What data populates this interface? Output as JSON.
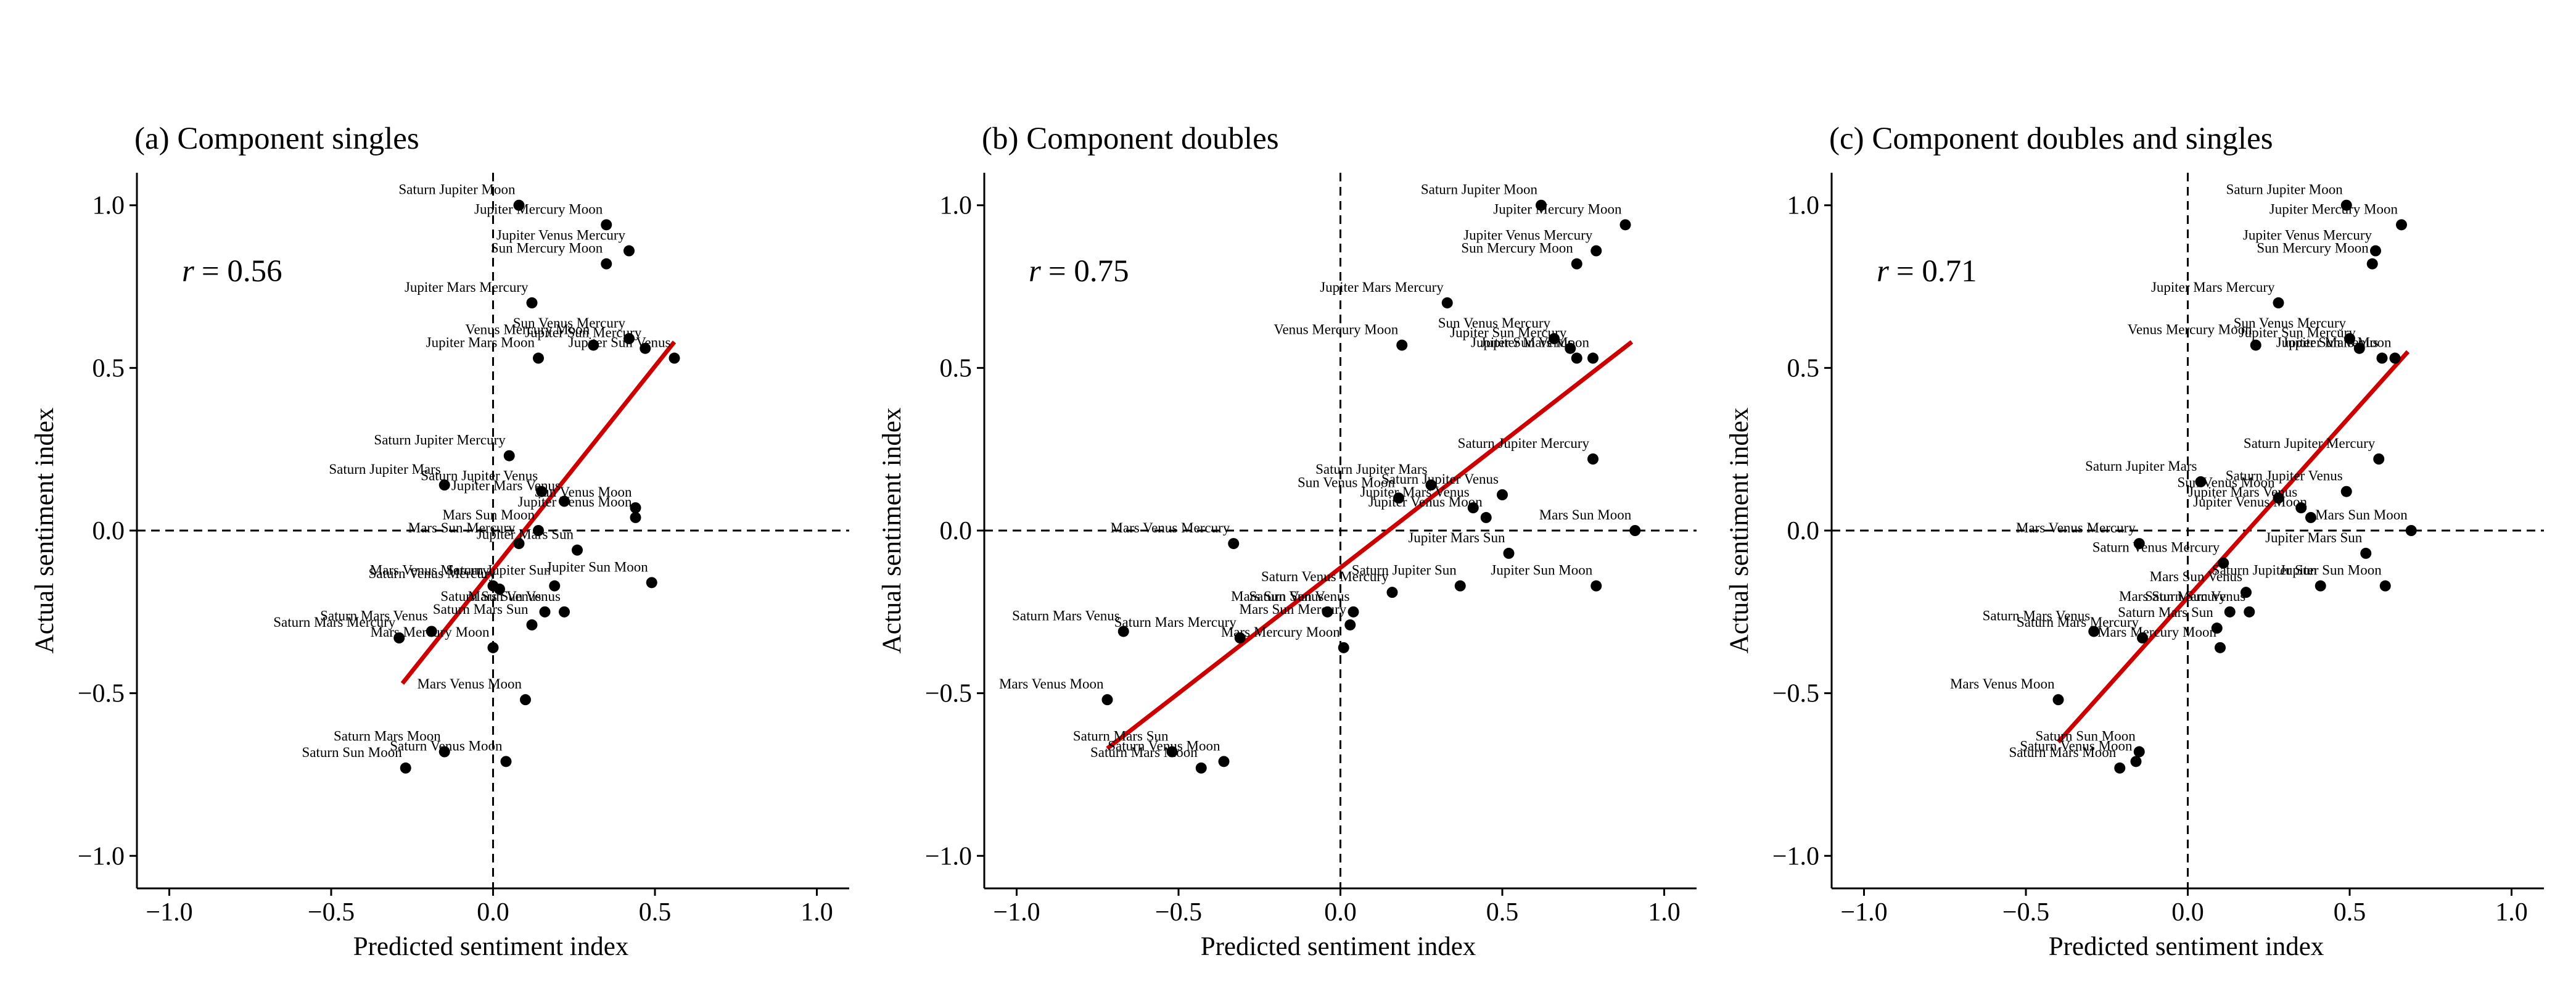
{
  "colors": {
    "points": "#000000",
    "fit_line": "#cc0000"
  },
  "chart_data": [
    {
      "type": "scatter",
      "title": "(a) Component singles",
      "xlabel": "Predicted sentiment index",
      "ylabel": "Actual sentiment index",
      "xlim": [
        -1.1,
        1.1
      ],
      "ylim": [
        -1.1,
        1.1
      ],
      "xticks": [
        "−1.0",
        "−0.5",
        "0.0",
        "0.5",
        "1.0"
      ],
      "yticks": [
        "−1.0",
        "−0.5",
        "0.0",
        "0.5",
        "1.0"
      ],
      "reference_lines": "dashed at x = 0 and y = 0",
      "r_var": "r",
      "r_value": "= 0.56",
      "fit_line": {
        "x": [
          -0.28,
          0.56
        ],
        "y": [
          -0.47,
          0.58
        ]
      },
      "points": [
        {
          "label": "Saturn Jupiter Moon",
          "x": 0.08,
          "y": 1.0
        },
        {
          "label": "Jupiter Mercury Moon",
          "x": 0.35,
          "y": 0.94
        },
        {
          "label": "Jupiter Venus Mercury",
          "x": 0.42,
          "y": 0.86
        },
        {
          "label": "Sun Mercury Moon",
          "x": 0.35,
          "y": 0.82
        },
        {
          "label": "Jupiter Mars Mercury",
          "x": 0.12,
          "y": 0.7
        },
        {
          "label": "Sun Venus Mercury",
          "x": 0.42,
          "y": 0.59
        },
        {
          "label": "Venus Mercury Moon",
          "x": 0.31,
          "y": 0.57
        },
        {
          "label": "Jupiter Sun Mercury",
          "x": 0.47,
          "y": 0.56
        },
        {
          "label": "Jupiter Mars Moon",
          "x": 0.14,
          "y": 0.53
        },
        {
          "label": "Jupiter Sun Venus",
          "x": 0.56,
          "y": 0.53
        },
        {
          "label": "Saturn Jupiter Mercury",
          "x": 0.05,
          "y": 0.23
        },
        {
          "label": "Saturn Jupiter Mars",
          "x": -0.15,
          "y": 0.14
        },
        {
          "label": "Saturn Jupiter Venus",
          "x": 0.15,
          "y": 0.12
        },
        {
          "label": "Sun Venus Moon",
          "x": 0.44,
          "y": 0.07
        },
        {
          "label": "Jupiter Mars Venus",
          "x": 0.22,
          "y": 0.09
        },
        {
          "label": "Jupiter Venus Moon",
          "x": 0.44,
          "y": 0.04
        },
        {
          "label": "Mars Sun Moon",
          "x": 0.14,
          "y": 0.0
        },
        {
          "label": "Mars Sun Mercury",
          "x": 0.08,
          "y": -0.04
        },
        {
          "label": "Jupiter Mars Sun",
          "x": 0.26,
          "y": -0.06
        },
        {
          "label": "Mars Venus Mercury",
          "x": 0.0,
          "y": -0.17
        },
        {
          "label": "Saturn Jupiter Sun",
          "x": 0.19,
          "y": -0.17
        },
        {
          "label": "Saturn Venus Mercury",
          "x": 0.02,
          "y": -0.18
        },
        {
          "label": "Jupiter Sun Moon",
          "x": 0.49,
          "y": -0.16
        },
        {
          "label": "Saturn Sun Venus",
          "x": 0.16,
          "y": -0.25
        },
        {
          "label": "Mars Sun Venus",
          "x": 0.22,
          "y": -0.25
        },
        {
          "label": "Saturn Mars Venus",
          "x": -0.19,
          "y": -0.31
        },
        {
          "label": "Saturn Mars Sun",
          "x": 0.12,
          "y": -0.29
        },
        {
          "label": "Saturn Mars Mercury",
          "x": -0.29,
          "y": -0.33
        },
        {
          "label": "Mars Mercury Moon",
          "x": 0.0,
          "y": -0.36
        },
        {
          "label": "Mars Venus Moon",
          "x": 0.1,
          "y": -0.52
        },
        {
          "label": "Saturn Venus Moon",
          "x": 0.04,
          "y": -0.71
        },
        {
          "label": "Saturn Mars Moon",
          "x": -0.15,
          "y": -0.68
        },
        {
          "label": "Saturn Sun Moon",
          "x": -0.27,
          "y": -0.73
        }
      ]
    },
    {
      "type": "scatter",
      "title": "(b) Component doubles",
      "xlabel": "Predicted sentiment index",
      "ylabel": "Actual sentiment index",
      "xlim": [
        -1.1,
        1.1
      ],
      "ylim": [
        -1.1,
        1.1
      ],
      "xticks": [
        "−1.0",
        "−0.5",
        "0.0",
        "0.5",
        "1.0"
      ],
      "yticks": [
        "−1.0",
        "−0.5",
        "0.0",
        "0.5",
        "1.0"
      ],
      "reference_lines": "dashed at x = 0 and y = 0",
      "r_var": "r",
      "r_value": "= 0.75",
      "fit_line": {
        "x": [
          -0.72,
          0.9
        ],
        "y": [
          -0.67,
          0.58
        ]
      },
      "points": [
        {
          "label": "Saturn Jupiter Moon",
          "x": 0.62,
          "y": 1.0
        },
        {
          "label": "Jupiter Mercury Moon",
          "x": 0.88,
          "y": 0.94
        },
        {
          "label": "Jupiter Venus Mercury",
          "x": 0.79,
          "y": 0.86
        },
        {
          "label": "Sun Mercury Moon",
          "x": 0.73,
          "y": 0.82
        },
        {
          "label": "Jupiter Mars Mercury",
          "x": 0.33,
          "y": 0.7
        },
        {
          "label": "Sun Venus Mercury",
          "x": 0.66,
          "y": 0.59
        },
        {
          "label": "Venus Mercury Moon",
          "x": 0.19,
          "y": 0.57
        },
        {
          "label": "Jupiter Sun Mercury",
          "x": 0.71,
          "y": 0.56
        },
        {
          "label": "Jupiter Sun Venus",
          "x": 0.73,
          "y": 0.53
        },
        {
          "label": "Jupiter Mars Moon",
          "x": 0.78,
          "y": 0.53
        },
        {
          "label": "Saturn Jupiter Mercury",
          "x": 0.78,
          "y": 0.22
        },
        {
          "label": "Saturn Jupiter Mars",
          "x": 0.28,
          "y": 0.14
        },
        {
          "label": "Saturn Jupiter Venus",
          "x": 0.5,
          "y": 0.11
        },
        {
          "label": "Sun Venus Moon",
          "x": 0.18,
          "y": 0.1
        },
        {
          "label": "Jupiter Mars Venus",
          "x": 0.41,
          "y": 0.07
        },
        {
          "label": "Jupiter Venus Moon",
          "x": 0.45,
          "y": 0.04
        },
        {
          "label": "Mars Sun Moon",
          "x": 0.91,
          "y": 0.0
        },
        {
          "label": "Mars Venus Mercury",
          "x": -0.33,
          "y": -0.04
        },
        {
          "label": "Jupiter Mars Sun",
          "x": 0.52,
          "y": -0.07
        },
        {
          "label": "Mars Sun Venus",
          "x": -0.04,
          "y": -0.25
        },
        {
          "label": "Saturn Venus Mercury",
          "x": 0.16,
          "y": -0.19
        },
        {
          "label": "Jupiter Sun Moon",
          "x": 0.79,
          "y": -0.17
        },
        {
          "label": "Saturn Jupiter Sun",
          "x": 0.37,
          "y": -0.17
        },
        {
          "label": "Saturn Sun Venus",
          "x": 0.04,
          "y": -0.25
        },
        {
          "label": "Saturn Mars Venus",
          "x": -0.67,
          "y": -0.31
        },
        {
          "label": "Mars Sun Mercury",
          "x": 0.03,
          "y": -0.29
        },
        {
          "label": "Saturn Mars Mercury",
          "x": -0.31,
          "y": -0.33
        },
        {
          "label": "Mars Mercury Moon",
          "x": 0.01,
          "y": -0.36
        },
        {
          "label": "Mars Venus Moon",
          "x": -0.72,
          "y": -0.52
        },
        {
          "label": "Saturn Mars Sun",
          "x": -0.52,
          "y": -0.68
        },
        {
          "label": "Saturn Venus Moon",
          "x": -0.36,
          "y": -0.71
        },
        {
          "label": "Saturn Mars Moon",
          "x": -0.43,
          "y": -0.73
        }
      ]
    },
    {
      "type": "scatter",
      "title": "(c) Component doubles and singles",
      "xlabel": "Predicted sentiment index",
      "ylabel": "Actual sentiment index",
      "xlim": [
        -1.1,
        1.1
      ],
      "ylim": [
        -1.1,
        1.1
      ],
      "xticks": [
        "−1.0",
        "−0.5",
        "0.0",
        "0.5",
        "1.0"
      ],
      "yticks": [
        "−1.0",
        "−0.5",
        "0.0",
        "0.5",
        "1.0"
      ],
      "reference_lines": "dashed at x = 0 and y = 0",
      "r_var": "r",
      "r_value": "= 0.71",
      "fit_line": {
        "x": [
          -0.4,
          0.68
        ],
        "y": [
          -0.65,
          0.55
        ]
      },
      "points": [
        {
          "label": "Saturn Jupiter Moon",
          "x": 0.49,
          "y": 1.0
        },
        {
          "label": "Jupiter Mercury Moon",
          "x": 0.66,
          "y": 0.94
        },
        {
          "label": "Jupiter Venus Mercury",
          "x": 0.58,
          "y": 0.86
        },
        {
          "label": "Sun Mercury Moon",
          "x": 0.57,
          "y": 0.82
        },
        {
          "label": "Jupiter Mars Mercury",
          "x": 0.28,
          "y": 0.7
        },
        {
          "label": "Sun Venus Mercury",
          "x": 0.5,
          "y": 0.59
        },
        {
          "label": "Venus Mercury Moon",
          "x": 0.21,
          "y": 0.57
        },
        {
          "label": "Jupiter Sun Mercury",
          "x": 0.53,
          "y": 0.56
        },
        {
          "label": "Jupiter Sun Venus",
          "x": 0.6,
          "y": 0.53
        },
        {
          "label": "Jupiter Mars Moon",
          "x": 0.64,
          "y": 0.53
        },
        {
          "label": "Saturn Jupiter Mercury",
          "x": 0.59,
          "y": 0.22
        },
        {
          "label": "Saturn Jupiter Mars",
          "x": 0.04,
          "y": 0.15
        },
        {
          "label": "Saturn Jupiter Venus",
          "x": 0.49,
          "y": 0.12
        },
        {
          "label": "Sun Venus Moon",
          "x": 0.28,
          "y": 0.1
        },
        {
          "label": "Jupiter Mars Venus",
          "x": 0.35,
          "y": 0.07
        },
        {
          "label": "Jupiter Venus Moon",
          "x": 0.38,
          "y": 0.04
        },
        {
          "label": "Mars Sun Moon",
          "x": 0.69,
          "y": 0.0
        },
        {
          "label": "Mars Venus Mercury",
          "x": -0.15,
          "y": -0.04
        },
        {
          "label": "Jupiter Mars Sun",
          "x": 0.55,
          "y": -0.07
        },
        {
          "label": "Saturn Venus Mercury",
          "x": 0.11,
          "y": -0.1
        },
        {
          "label": "Mars Sun Venus",
          "x": 0.18,
          "y": -0.19
        },
        {
          "label": "Jupiter Sun Moon",
          "x": 0.61,
          "y": -0.17
        },
        {
          "label": "Saturn Jupiter Sun",
          "x": 0.41,
          "y": -0.17
        },
        {
          "label": "Saturn Sun Venus",
          "x": 0.19,
          "y": -0.25
        },
        {
          "label": "Mars Sun Mercury",
          "x": 0.13,
          "y": -0.25
        },
        {
          "label": "Saturn Mars Venus",
          "x": -0.29,
          "y": -0.31
        },
        {
          "label": "Saturn Mars Sun",
          "x": 0.09,
          "y": -0.3
        },
        {
          "label": "Saturn Mars Mercury",
          "x": -0.14,
          "y": -0.33
        },
        {
          "label": "Mars Mercury Moon",
          "x": 0.1,
          "y": -0.36
        },
        {
          "label": "Mars Venus Moon",
          "x": -0.4,
          "y": -0.52
        },
        {
          "label": "Saturn Sun Moon",
          "x": -0.15,
          "y": -0.68
        },
        {
          "label": "Saturn Venus Moon",
          "x": -0.16,
          "y": -0.71
        },
        {
          "label": "Saturn Mars Moon",
          "x": -0.21,
          "y": -0.73
        }
      ]
    }
  ]
}
